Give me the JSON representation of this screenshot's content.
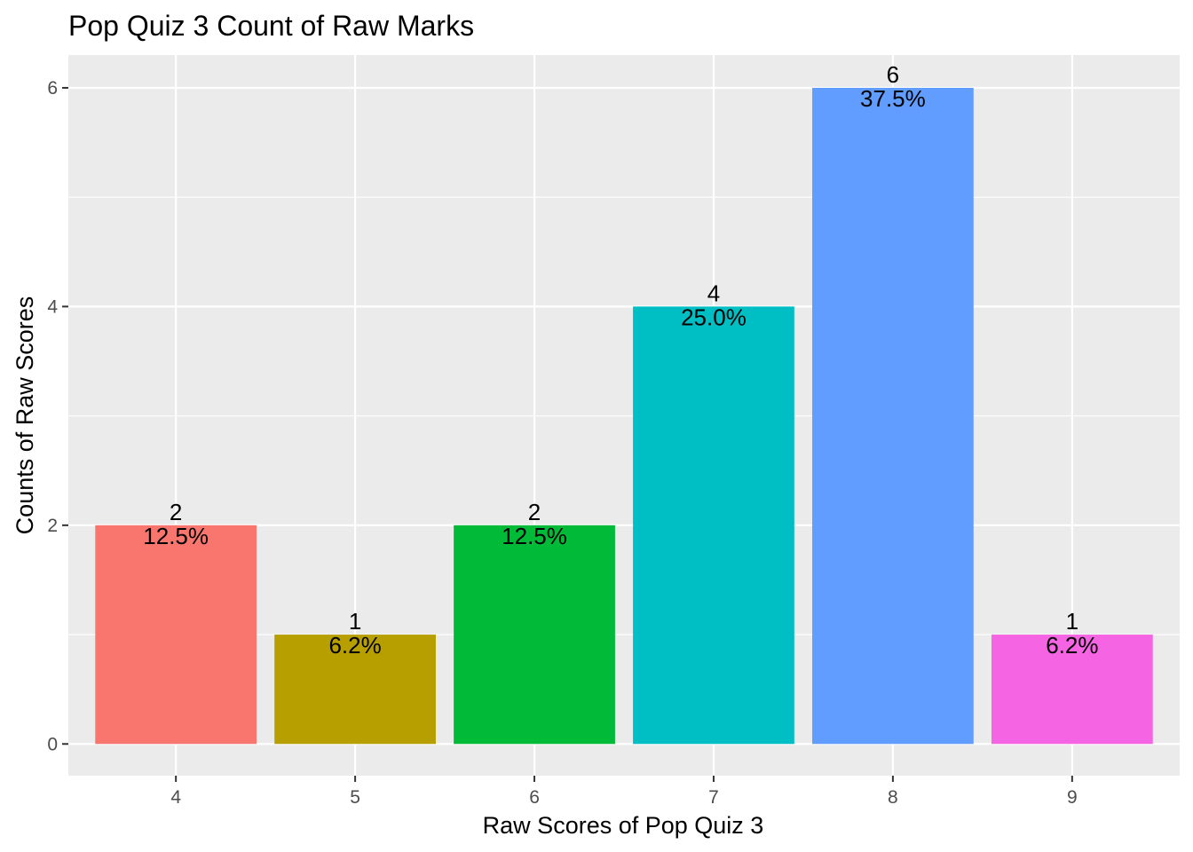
{
  "chart_data": {
    "type": "bar",
    "title": "Pop Quiz 3 Count of Raw Marks",
    "xlabel": "Raw Scores of Pop Quiz 3",
    "ylabel": "Counts of Raw Scores",
    "categories": [
      "4",
      "5",
      "6",
      "7",
      "8",
      "9"
    ],
    "values": [
      2,
      1,
      2,
      4,
      6,
      1
    ],
    "percent_labels": [
      "12.5%",
      "6.2%",
      "12.5%",
      "25.0%",
      "37.5%",
      "6.2%"
    ],
    "count_labels": [
      "2",
      "1",
      "2",
      "4",
      "6",
      "1"
    ],
    "colors": [
      "#F8766D",
      "#B79F00",
      "#00BA38",
      "#00BFC4",
      "#619CFF",
      "#F564E3"
    ],
    "ylim": [
      -0.29,
      6.3
    ],
    "yticks": [
      0,
      2,
      4,
      6
    ],
    "ytick_labels": [
      "0",
      "2",
      "4",
      "6"
    ],
    "grid": true,
    "legend": "none",
    "panel_background": "#EBEBEB"
  }
}
